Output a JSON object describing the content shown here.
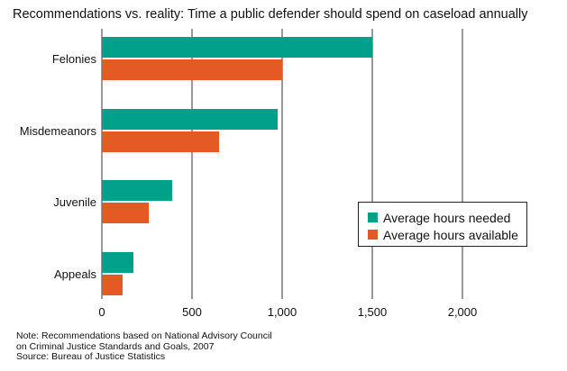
{
  "chart_data": {
    "type": "bar",
    "orientation": "horizontal",
    "title": "Recommendations vs. reality: Time a public defender should spend on caseload annually",
    "categories": [
      "Felonies",
      "Misdemeanors",
      "Juvenile",
      "Appeals"
    ],
    "series": [
      {
        "name": "Average hours needed",
        "color": "#00a08a",
        "values": [
          1500,
          975,
          390,
          175
        ]
      },
      {
        "name": "Average hours available",
        "color": "#e55a24",
        "values": [
          1000,
          650,
          260,
          115
        ]
      }
    ],
    "xlim": [
      0,
      2000
    ],
    "xticks": [
      0,
      500,
      1000,
      1500,
      2000
    ],
    "xtick_labels": [
      "0",
      "500",
      "1,000",
      "1,500",
      "2,000"
    ],
    "grid": "vertical",
    "legend_position": "right"
  },
  "notes": [
    "Note: Recommendations based on National Advisory Council",
    "on Criminal Justice Standards and Goals, 2007",
    "Source: Bureau of Justice Statistics"
  ]
}
